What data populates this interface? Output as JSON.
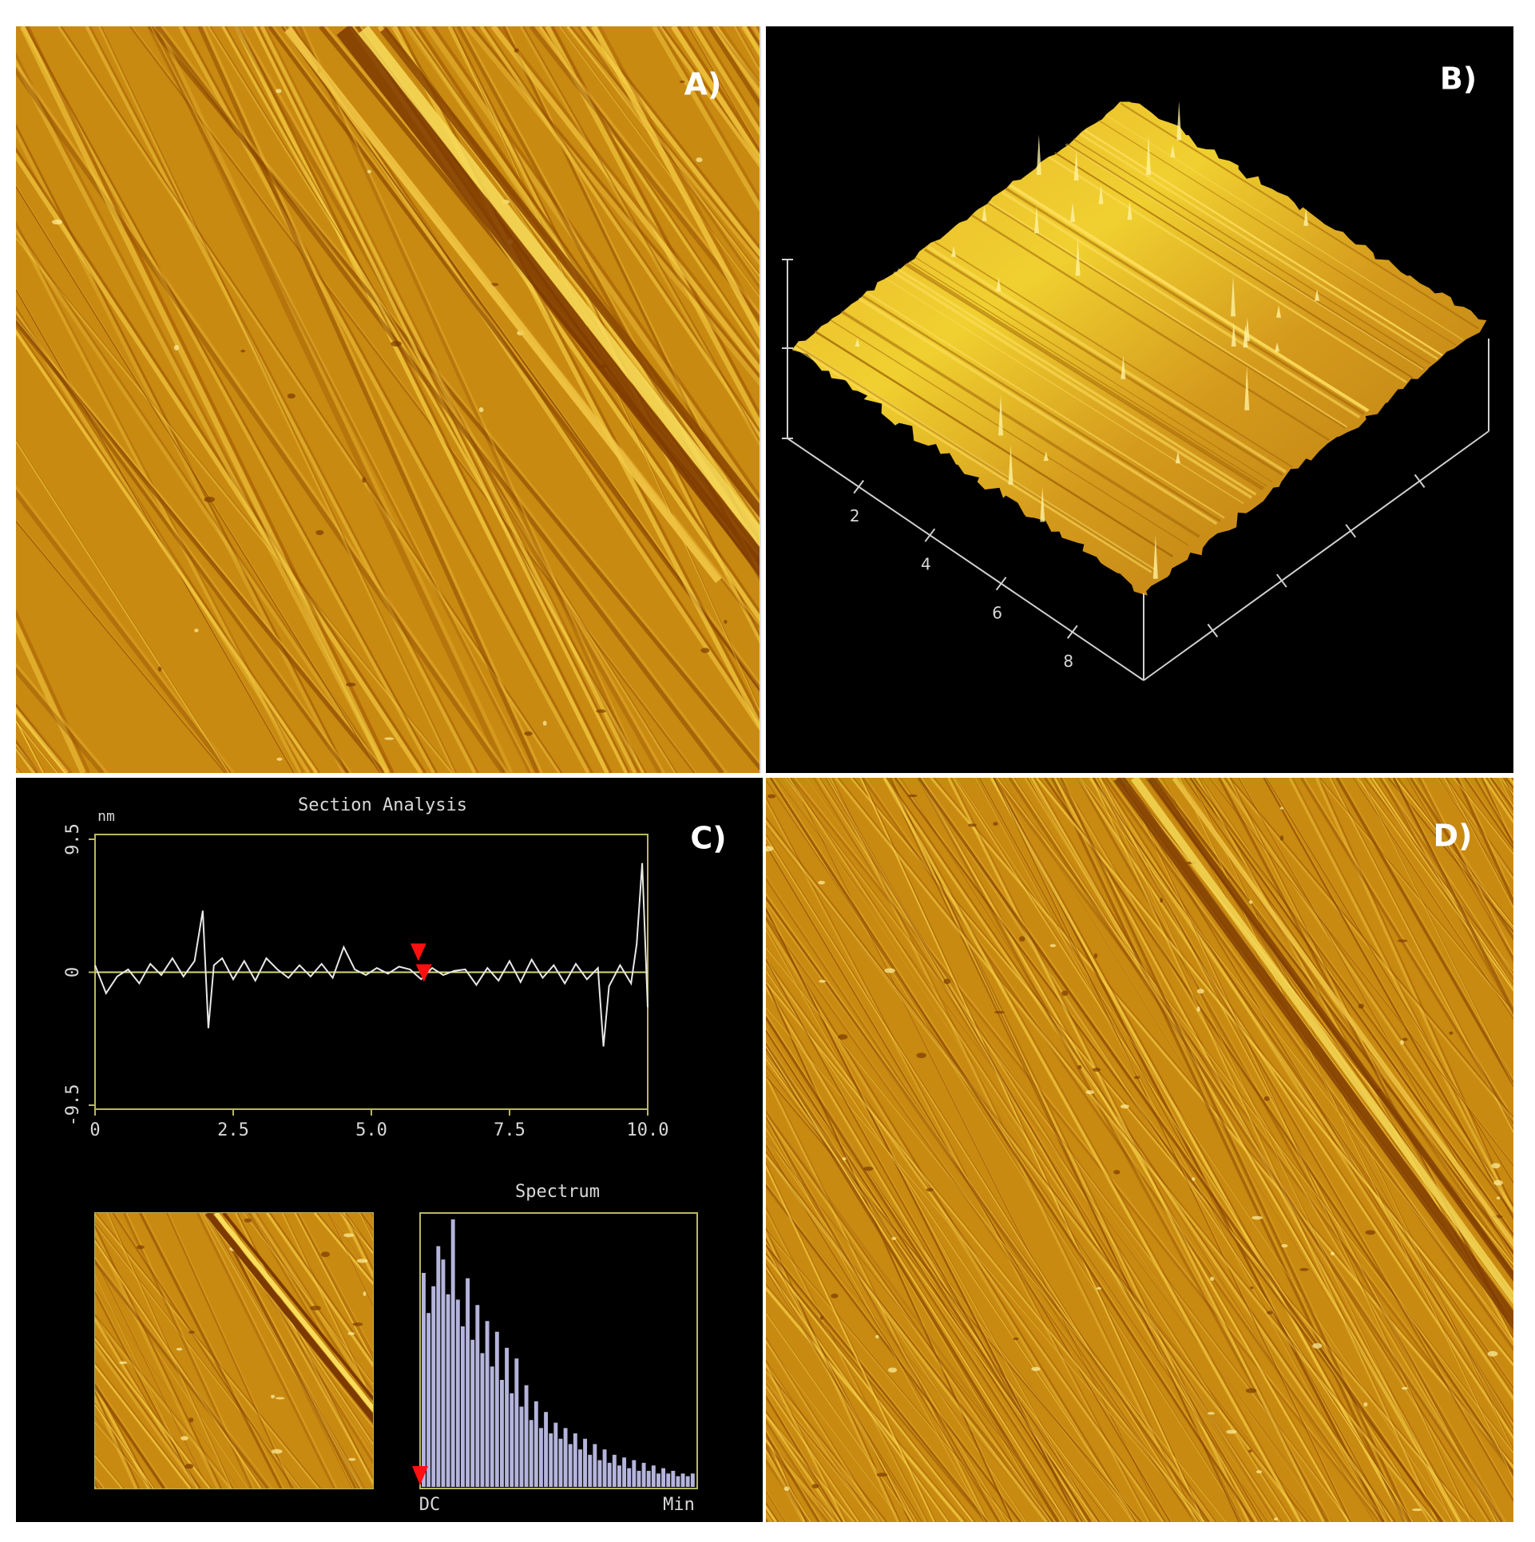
{
  "panels": {
    "a": {
      "label": "A)"
    },
    "b": {
      "label": "B)",
      "axis_ticks": [
        2,
        4,
        6,
        8
      ],
      "axis_lim": [
        0,
        10
      ]
    },
    "c": {
      "label": "C)",
      "section": {
        "title": "Section Analysis",
        "y_unit": "nm",
        "ylim": [
          -9.5,
          9.5
        ],
        "yticks": [
          -9.5,
          0,
          9.5
        ],
        "xlim": [
          0,
          10
        ],
        "xticks": [
          0,
          2.5,
          {
            "value": 5,
            "label": "5.0"
          },
          7.5,
          {
            "value": 10,
            "label": "10.0"
          }
        ],
        "x": [
          0,
          0.2,
          0.4,
          0.6,
          0.8,
          1.0,
          1.2,
          1.4,
          1.6,
          1.8,
          1.95,
          2.05,
          2.15,
          2.3,
          2.5,
          2.7,
          2.9,
          3.1,
          3.3,
          3.5,
          3.7,
          3.9,
          4.1,
          4.3,
          4.5,
          4.7,
          4.9,
          5.1,
          5.3,
          5.5,
          5.7,
          5.9,
          6.1,
          6.3,
          6.5,
          6.7,
          6.9,
          7.1,
          7.3,
          7.5,
          7.7,
          7.9,
          8.1,
          8.3,
          8.5,
          8.7,
          8.9,
          9.1,
          9.2,
          9.3,
          9.5,
          9.7,
          9.8,
          9.9,
          10.0
        ],
        "values": [
          0.5,
          -1.5,
          -0.3,
          0.2,
          -0.8,
          0.6,
          -0.2,
          1.0,
          -0.3,
          0.8,
          4.4,
          -4.0,
          0.5,
          1.0,
          -0.5,
          0.8,
          -0.6,
          1.0,
          0.2,
          -0.4,
          0.5,
          -0.3,
          0.6,
          -0.4,
          1.8,
          0.2,
          -0.2,
          0.3,
          -0.1,
          0.4,
          0.2,
          -0.5,
          0.3,
          -0.2,
          0.1,
          0.2,
          -0.9,
          0.3,
          -0.6,
          0.8,
          -0.7,
          0.9,
          -0.4,
          0.5,
          -0.8,
          0.6,
          -0.5,
          0.3,
          -5.3,
          -1.0,
          0.5,
          -0.8,
          2.0,
          7.8,
          -2.5
        ],
        "cursors": [
          5.85,
          5.95
        ]
      },
      "spectrum": {
        "title": "Spectrum",
        "start_label": "DC",
        "end_label": "Min",
        "values": [
          80,
          65,
          75,
          90,
          85,
          72,
          100,
          70,
          60,
          78,
          55,
          68,
          50,
          62,
          45,
          58,
          40,
          52,
          35,
          48,
          30,
          38,
          25,
          32,
          22,
          28,
          20,
          24,
          18,
          22,
          16,
          20,
          14,
          18,
          12,
          16,
          10,
          14,
          9,
          12,
          8,
          11,
          7,
          10,
          6,
          9,
          6,
          8,
          5,
          7,
          5,
          6,
          4,
          5,
          4,
          5
        ]
      }
    },
    "d": {
      "label": "D)"
    }
  }
}
